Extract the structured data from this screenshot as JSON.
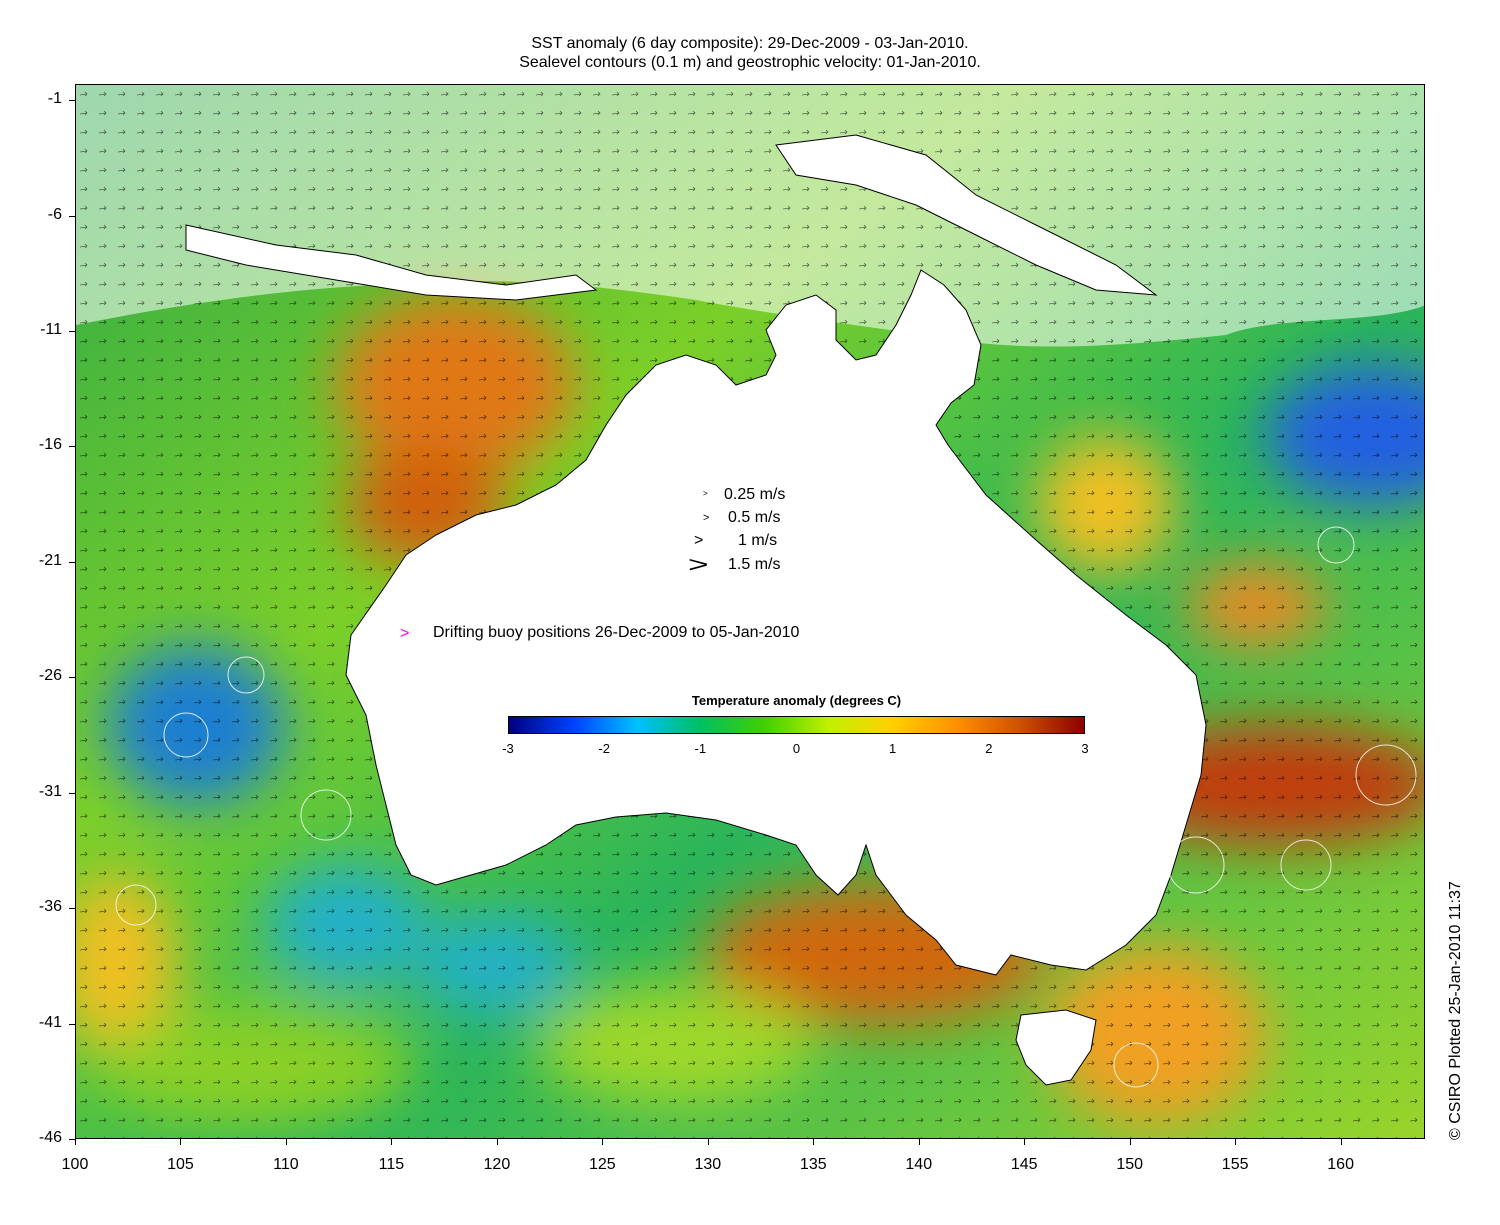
{
  "title": {
    "line1": "SST anomaly (6 day composite): 29-Dec-2009 - 03-Jan-2010.",
    "line2": "Sealevel contours (0.1 m) and geostrophic velocity: 01-Jan-2010."
  },
  "axes": {
    "y_ticks": [
      "-1",
      "-6",
      "-11",
      "-16",
      "-21",
      "-26",
      "-31",
      "-36",
      "-41",
      "-46"
    ],
    "x_ticks": [
      "100",
      "105",
      "110",
      "115",
      "120",
      "125",
      "130",
      "135",
      "140",
      "145",
      "150",
      "155",
      "160"
    ],
    "lon_range": [
      100,
      164
    ],
    "lat_range": [
      -46,
      -0.3
    ]
  },
  "velocity_legend": {
    "entries": [
      {
        "label": "0.25 m/s",
        "speed": 0.25
      },
      {
        "label": "0.5 m/s",
        "speed": 0.5
      },
      {
        "label": "1 m/s",
        "speed": 1
      },
      {
        "label": "1.5 m/s",
        "speed": 1.5
      }
    ]
  },
  "buoy_legend": {
    "marker": ">",
    "label": "Drifting buoy positions 26-Dec-2009 to 05-Jan-2010",
    "color": "#ff00ff"
  },
  "colorbar": {
    "title": "Temperature anomaly (degrees C)",
    "ticks": [
      "-3",
      "-2",
      "-1",
      "0",
      "1",
      "2",
      "3"
    ],
    "range": [
      -3,
      3
    ],
    "colors": [
      "#00007f",
      "#0040ff",
      "#00c0ff",
      "#00c060",
      "#40d000",
      "#c0f000",
      "#ffd000",
      "#ff9000",
      "#d05000",
      "#8b0000"
    ]
  },
  "credit": "© CSIRO Plotted 25-Jan-2010 11:37",
  "colors": {
    "land": "#ffffff",
    "coast": "#000000",
    "contour": "#ffffff"
  }
}
